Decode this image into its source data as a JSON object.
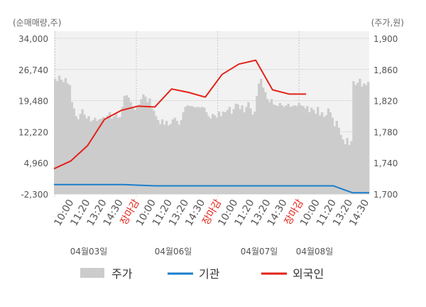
{
  "chart_data": {
    "type": "line",
    "y_left_title": "(순매매량,주)",
    "y_right_title": "(주가,원)",
    "y_left_ticks": [
      "34,000",
      "26,740",
      "19,480",
      "12,220",
      "4,960",
      "-2,300"
    ],
    "y_right_ticks": [
      "1,900",
      "1,860",
      "1,820",
      "1,780",
      "1,740",
      "1,700"
    ],
    "y_left_range": [
      -2300,
      34000
    ],
    "y_right_range": [
      1700,
      1900
    ],
    "x_tick_labels": [
      "10:00",
      "11:20",
      "13:20",
      "14:30",
      "장마감",
      "10:00",
      "11:20",
      "13:20",
      "14:30",
      "장마감",
      "10:00",
      "11:20",
      "13:20",
      "14:30",
      "장마감",
      "10:00",
      "11:20",
      "13:20",
      "14:30"
    ],
    "close_label": "장마감",
    "date_labels": [
      "04월03일",
      "04월06일",
      "04월07일",
      "04월08일"
    ],
    "legend": [
      "주가",
      "기관",
      "외국인"
    ],
    "colors": {
      "price": "#cccccc",
      "institution": "#1a7ecb",
      "foreign": "#e2231a"
    },
    "price_series": [
      [
        0,
        1848
      ],
      [
        1,
        1845
      ],
      [
        2,
        1852
      ],
      [
        3,
        1847
      ],
      [
        4,
        1844
      ],
      [
        5,
        1849
      ],
      [
        6,
        1842
      ],
      [
        7,
        1840
      ],
      [
        8,
        1818
      ],
      [
        9,
        1810
      ],
      [
        10,
        1800
      ],
      [
        11,
        1796
      ],
      [
        12,
        1803
      ],
      [
        13,
        1809
      ],
      [
        14,
        1802
      ],
      [
        15,
        1797
      ],
      [
        16,
        1800
      ],
      [
        17,
        1793
      ],
      [
        18,
        1795
      ],
      [
        19,
        1798
      ],
      [
        20,
        1794
      ],
      [
        21,
        1796
      ],
      [
        22,
        1797
      ],
      [
        23,
        1799
      ],
      [
        24,
        1796
      ],
      [
        25,
        1801
      ],
      [
        26,
        1805
      ],
      [
        27,
        1797
      ],
      [
        28,
        1800
      ],
      [
        29,
        1803
      ],
      [
        30,
        1798
      ],
      [
        31,
        1799
      ],
      [
        32,
        1812
      ],
      [
        33,
        1826
      ],
      [
        34,
        1827
      ],
      [
        35,
        1824
      ],
      [
        36,
        1818
      ],
      [
        37,
        1811
      ],
      [
        38,
        1808
      ],
      [
        39,
        1812
      ],
      [
        40,
        1815
      ],
      [
        41,
        1822
      ],
      [
        42,
        1828
      ],
      [
        43,
        1825
      ],
      [
        44,
        1818
      ],
      [
        45,
        1823
      ],
      [
        46,
        1810
      ],
      [
        47,
        1807
      ],
      [
        48,
        1800
      ],
      [
        49,
        1795
      ],
      [
        50,
        1790
      ],
      [
        51,
        1796
      ],
      [
        52,
        1789
      ],
      [
        53,
        1794
      ],
      [
        54,
        1788
      ],
      [
        55,
        1790
      ],
      [
        56,
        1796
      ],
      [
        57,
        1798
      ],
      [
        58,
        1794
      ],
      [
        59,
        1789
      ],
      [
        60,
        1795
      ],
      [
        61,
        1805
      ],
      [
        62,
        1812
      ],
      [
        63,
        1814
      ],
      [
        64,
        1813
      ],
      [
        65,
        1813
      ],
      [
        66,
        1812
      ],
      [
        67,
        1811
      ],
      [
        68,
        1812
      ],
      [
        69,
        1811
      ],
      [
        70,
        1812
      ],
      [
        71,
        1811
      ],
      [
        72,
        1805
      ],
      [
        73,
        1800
      ],
      [
        74,
        1797
      ],
      [
        75,
        1803
      ],
      [
        76,
        1801
      ],
      [
        77,
        1798
      ],
      [
        78,
        1806
      ],
      [
        79,
        1800
      ],
      [
        80,
        1806
      ],
      [
        81,
        1805
      ],
      [
        82,
        1808
      ],
      [
        83,
        1812
      ],
      [
        84,
        1803
      ],
      [
        85,
        1809
      ],
      [
        86,
        1816
      ],
      [
        87,
        1815
      ],
      [
        88,
        1809
      ],
      [
        89,
        1814
      ],
      [
        90,
        1805
      ],
      [
        91,
        1812
      ],
      [
        92,
        1818
      ],
      [
        93,
        1810
      ],
      [
        94,
        1802
      ],
      [
        95,
        1806
      ],
      [
        96,
        1826
      ],
      [
        97,
        1842
      ],
      [
        98,
        1848
      ],
      [
        99,
        1837
      ],
      [
        100,
        1831
      ],
      [
        101,
        1822
      ],
      [
        102,
        1818
      ],
      [
        103,
        1822
      ],
      [
        104,
        1815
      ],
      [
        105,
        1814
      ],
      [
        106,
        1813
      ],
      [
        107,
        1817
      ],
      [
        108,
        1814
      ],
      [
        109,
        1812
      ],
      [
        110,
        1814
      ],
      [
        111,
        1816
      ],
      [
        112,
        1812
      ],
      [
        113,
        1813
      ],
      [
        114,
        1814
      ],
      [
        115,
        1813
      ],
      [
        116,
        1817
      ],
      [
        117,
        1814
      ],
      [
        118,
        1813
      ],
      [
        119,
        1810
      ],
      [
        120,
        1813
      ],
      [
        121,
        1805
      ],
      [
        122,
        1811
      ],
      [
        123,
        1808
      ],
      [
        124,
        1803
      ],
      [
        125,
        1812
      ],
      [
        126,
        1801
      ],
      [
        127,
        1805
      ],
      [
        128,
        1799
      ],
      [
        129,
        1801
      ],
      [
        130,
        1810
      ],
      [
        131,
        1805
      ],
      [
        132,
        1798
      ],
      [
        133,
        1787
      ],
      [
        134,
        1794
      ],
      [
        135,
        1785
      ],
      [
        136,
        1776
      ],
      [
        137,
        1770
      ],
      [
        138,
        1764
      ],
      [
        139,
        1772
      ],
      [
        140,
        1763
      ],
      [
        141,
        1768
      ],
      [
        142,
        1845
      ],
      [
        143,
        1840
      ],
      [
        144,
        1843
      ],
      [
        145,
        1848
      ],
      [
        146,
        1838
      ],
      [
        147,
        1842
      ],
      [
        148,
        1840
      ],
      [
        149,
        1844
      ]
    ],
    "institution_series": [
      [
        0,
        -100
      ],
      [
        33,
        -100
      ],
      [
        48,
        -400
      ],
      [
        133,
        -400
      ],
      [
        142,
        -2000
      ],
      [
        150,
        -2000
      ]
    ],
    "foreign_series": [
      [
        0,
        3600
      ],
      [
        8,
        5400
      ],
      [
        16,
        9000
      ],
      [
        24,
        15100
      ],
      [
        32,
        17200
      ],
      [
        40,
        18200
      ],
      [
        48,
        18000
      ],
      [
        56,
        22200
      ],
      [
        64,
        21400
      ],
      [
        72,
        20300
      ],
      [
        80,
        25600
      ],
      [
        88,
        28000
      ],
      [
        96,
        28900
      ],
      [
        104,
        22000
      ],
      [
        112,
        21000
      ],
      [
        120,
        21000
      ]
    ],
    "x_index_range": [
      0,
      150
    ],
    "grid": true,
    "legend_position": "bottom"
  }
}
